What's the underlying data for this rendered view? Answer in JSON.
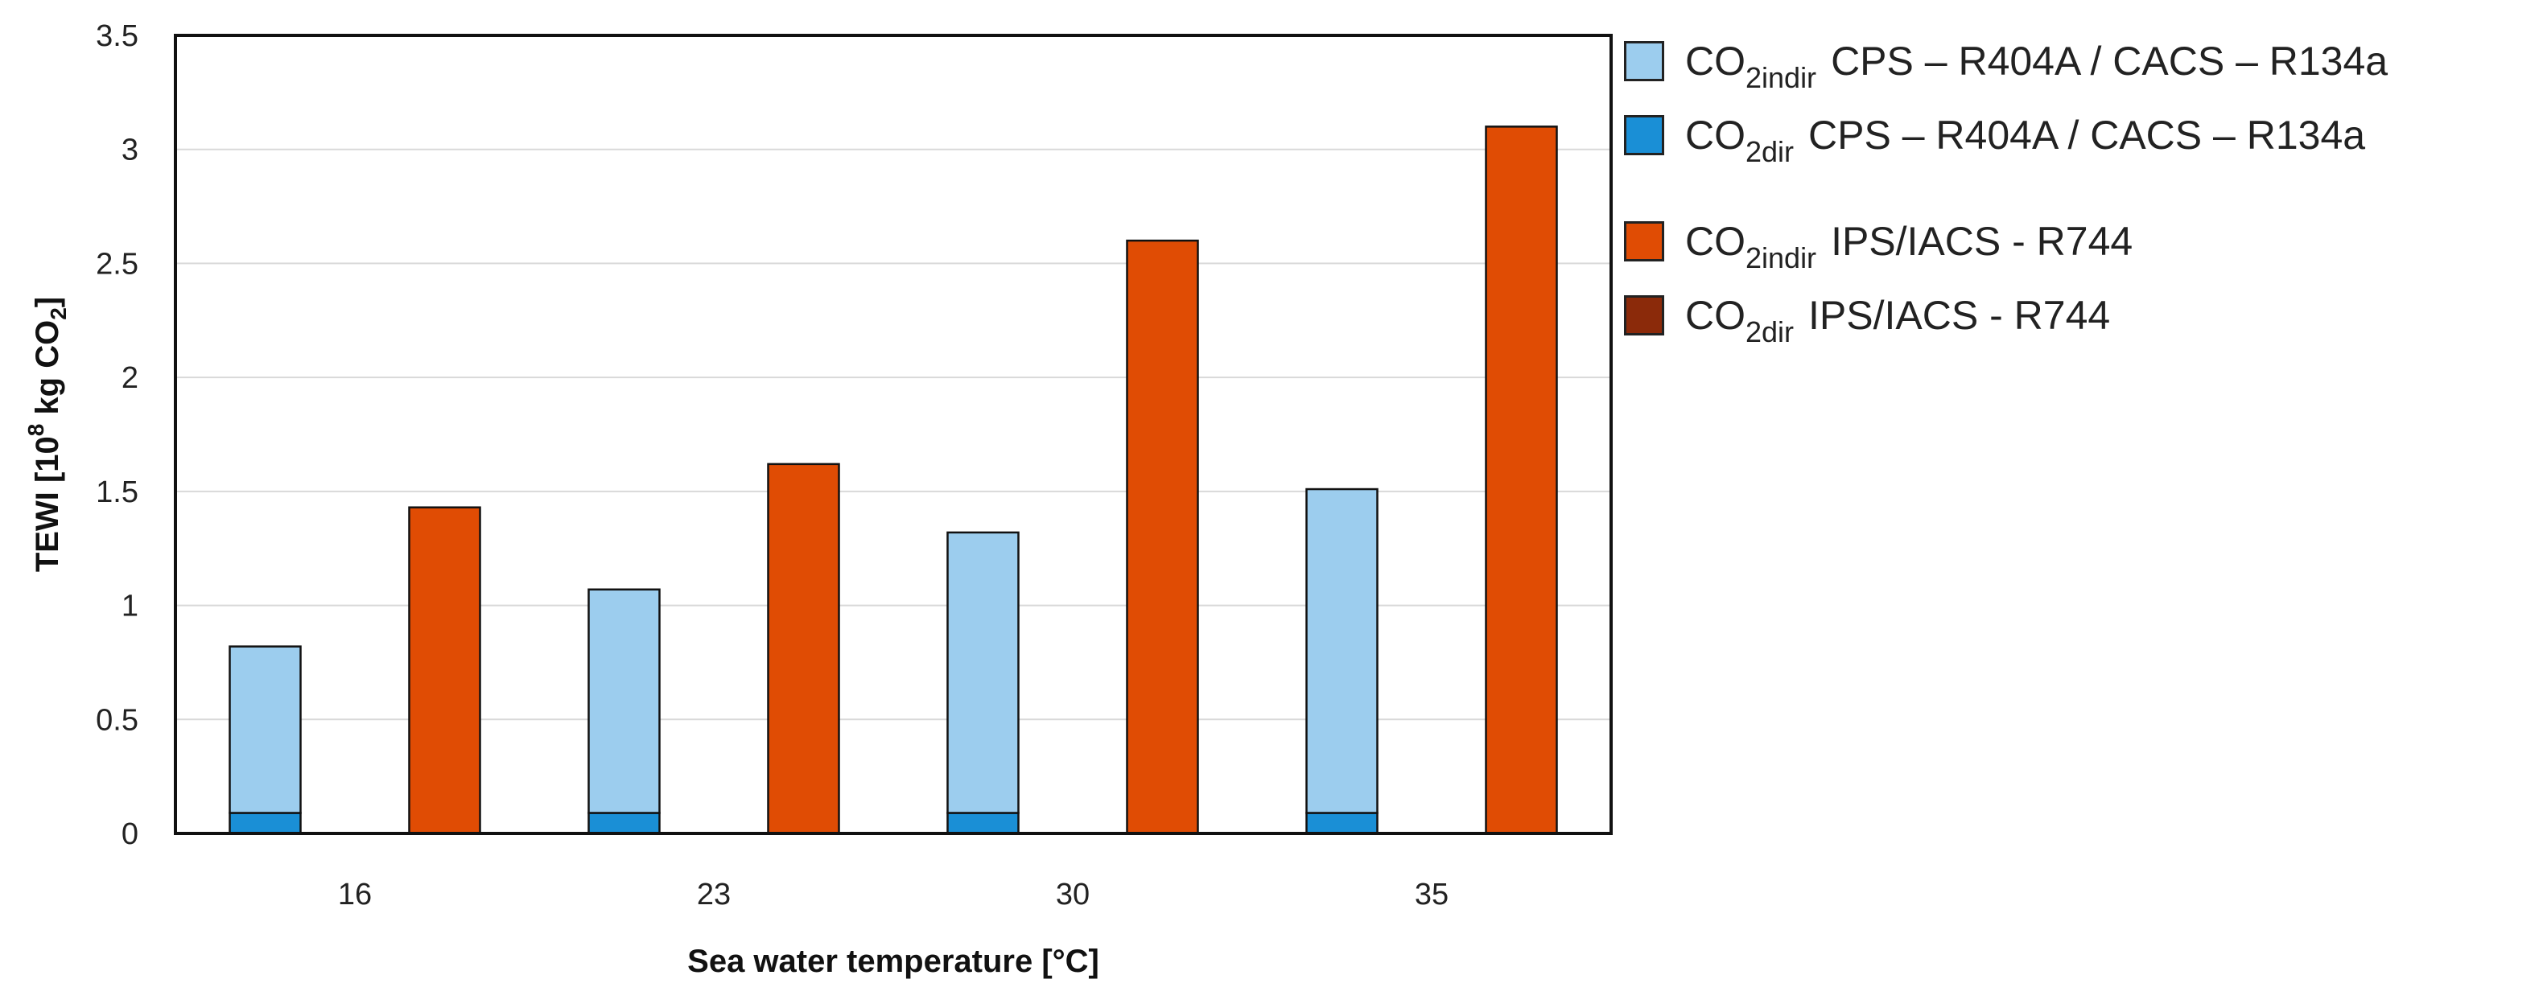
{
  "chart_data": {
    "type": "bar",
    "title": "",
    "xlabel": "Sea water temperature [°C]",
    "ylabel": {
      "prefix": "TEWI [10",
      "sup": "8",
      "middle": " kg CO",
      "sub": "2",
      "suffix": "]"
    },
    "categories": [
      "16",
      "23",
      "30",
      "35"
    ],
    "ylim": [
      0,
      3.5
    ],
    "yticks": [
      "0",
      "0.5",
      "1",
      "1.5",
      "2",
      "2.5",
      "3",
      "3.5"
    ],
    "grid": true,
    "legend_position": "right",
    "stacks": [
      {
        "system": "CPS – R404A / CACS – R134a",
        "series": [
          {
            "name": "CO2dir CPS – R404A / CACS – R134a",
            "color": "#1a8fd6",
            "values": [
              0.09,
              0.09,
              0.09,
              0.09
            ]
          },
          {
            "name": "CO2indir CPS – R404A / CACS – R134a",
            "color": "#9ccdee",
            "values": [
              0.73,
              0.98,
              1.23,
              1.42
            ]
          }
        ]
      },
      {
        "system": "IPS/IACS - R744",
        "series": [
          {
            "name": "CO2dir IPS/IACS - R744",
            "color": "#8b2a0a",
            "values": [
              0.0,
              0.0,
              0.0,
              0.0
            ]
          },
          {
            "name": "CO2indir IPS/IACS - R744",
            "color": "#e04c04",
            "values": [
              1.43,
              1.62,
              2.6,
              3.1
            ]
          }
        ]
      }
    ]
  },
  "legend": [
    {
      "main": "CO",
      "sub": "2indir",
      "desc": "CPS – R404A / CACS – R134a",
      "color": "#9ccdee"
    },
    {
      "main": "CO",
      "sub": "2dir",
      "desc": "CPS – R404A / CACS – R134a",
      "color": "#1a8fd6"
    },
    {
      "main": "CO",
      "sub": "2indir",
      "desc": "IPS/IACS - R744",
      "color": "#e04c04"
    },
    {
      "main": "CO",
      "sub": "2dir",
      "desc": "IPS/IACS - R744",
      "color": "#8b2a0a"
    }
  ]
}
